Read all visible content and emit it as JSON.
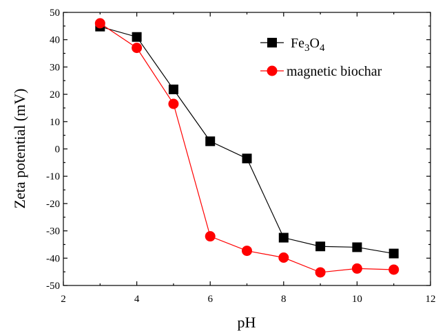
{
  "chart_data": {
    "type": "line",
    "xlabel": "pH",
    "ylabel": "Zeta potential (mV)",
    "xlim": [
      2,
      12
    ],
    "ylim": [
      -50,
      50
    ],
    "xticks": [
      2,
      4,
      6,
      8,
      10,
      12
    ],
    "yticks": [
      -50,
      -40,
      -30,
      -20,
      -10,
      0,
      10,
      20,
      30,
      40,
      50
    ],
    "grid": false,
    "legend_position": "top-right",
    "series": [
      {
        "name": "Fe3O4",
        "color": "#000000",
        "marker": "square",
        "x": [
          3,
          4,
          5,
          6,
          7,
          8,
          9,
          10,
          11
        ],
        "y": [
          44.8,
          41,
          21.8,
          2.8,
          -3.5,
          -32.5,
          -35.7,
          -36,
          -38.3
        ]
      },
      {
        "name": "magnetic biochar",
        "color": "#ff0000",
        "marker": "circle",
        "x": [
          3,
          4,
          5,
          6,
          7,
          8,
          9,
          10,
          11
        ],
        "y": [
          46,
          37,
          16.5,
          -32,
          -37.3,
          -39.8,
          -45.2,
          -43.8,
          -44.2
        ]
      }
    ]
  }
}
